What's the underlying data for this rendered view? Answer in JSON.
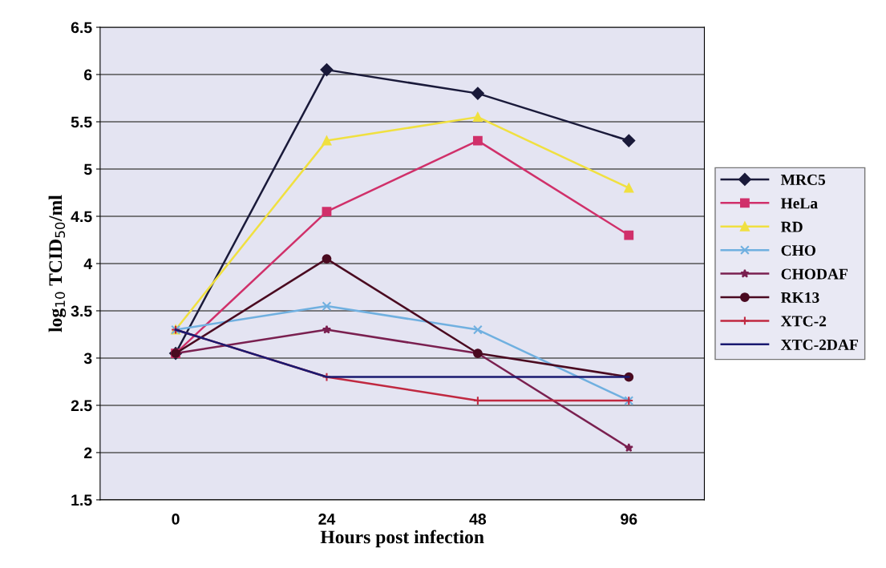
{
  "chart_data": {
    "type": "line",
    "xlabel": "Hours post infection",
    "ylabel": "log$_{10}$ TCID$_{50}$/ml",
    "categories": [
      "0",
      "24",
      "48",
      "96"
    ],
    "ylim": [
      1.5,
      6.5
    ],
    "yticks": [
      1.5,
      2,
      2.5,
      3,
      3.5,
      4,
      4.5,
      5,
      5.5,
      6,
      6.5
    ],
    "grid": "y",
    "legend": "right",
    "series": [
      {
        "name": "MRC5",
        "color": "#1a1a3a",
        "marker": "diamond",
        "values": [
          3.05,
          6.05,
          5.8,
          5.3
        ]
      },
      {
        "name": "HeLa",
        "color": "#d0306a",
        "marker": "square",
        "values": [
          3.05,
          4.55,
          5.3,
          4.3
        ]
      },
      {
        "name": "RD",
        "color": "#f0e040",
        "marker": "triangle",
        "values": [
          3.3,
          5.3,
          5.55,
          4.8
        ]
      },
      {
        "name": "CHO",
        "color": "#70b0e0",
        "marker": "cross",
        "values": [
          3.3,
          3.55,
          3.3,
          2.55
        ]
      },
      {
        "name": "CHODAF",
        "color": "#7a2050",
        "marker": "star",
        "values": [
          3.05,
          3.3,
          3.05,
          2.05
        ]
      },
      {
        "name": "RK13",
        "color": "#4a0a20",
        "marker": "circle",
        "values": [
          3.05,
          4.05,
          3.05,
          2.8
        ]
      },
      {
        "name": "XTC-2",
        "color": "#c02840",
        "marker": "plus",
        "values": [
          3.3,
          2.8,
          2.55,
          2.55
        ]
      },
      {
        "name": "XTC-2DAF",
        "color": "#1a1a70",
        "marker": "none",
        "values": [
          3.3,
          2.8,
          2.8,
          2.8
        ]
      }
    ]
  }
}
